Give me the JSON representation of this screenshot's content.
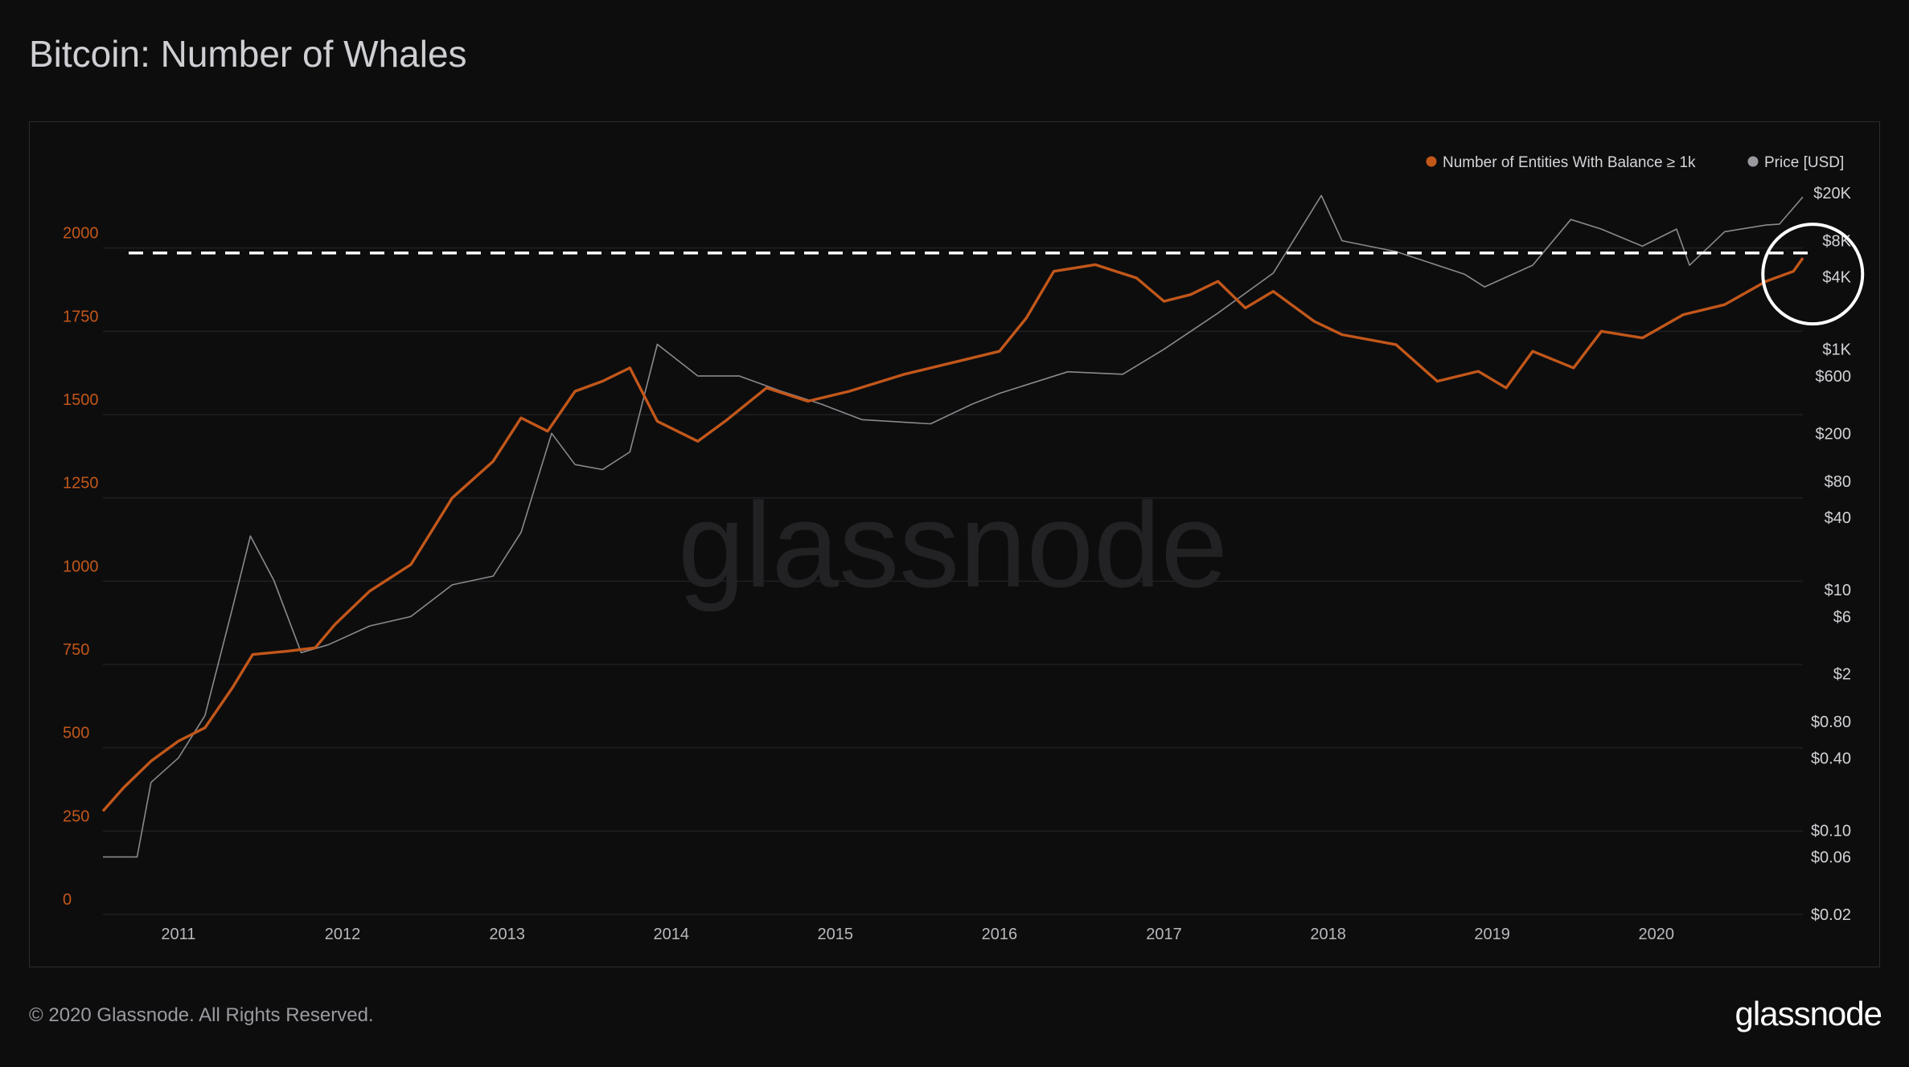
{
  "page": {
    "title": "Bitcoin: Number of Whales",
    "footer_copyright": "© 2020 Glassnode. All Rights Reserved.",
    "footer_logo": "glassnode",
    "watermark": "glassnode"
  },
  "chart_data": {
    "type": "line",
    "title": "Bitcoin: Number of Whales",
    "legend_position": "top-right",
    "grid": true,
    "colors": {
      "whales": "#c2571a",
      "price": "#8a8a8e",
      "background": "#0d0d0e",
      "annotation": "#ffffff"
    },
    "x_ticks": [
      "2011",
      "2012",
      "2013",
      "2014",
      "2015",
      "2016",
      "2017",
      "2018",
      "2019",
      "2020"
    ],
    "x_range": [
      "2010-07-17",
      "2020-11-22"
    ],
    "y_left": {
      "ticks": [
        0,
        250,
        500,
        750,
        1000,
        1250,
        1500,
        1750,
        2000
      ],
      "labels": [
        "0",
        "250",
        "500",
        "750",
        "1000",
        "1250",
        "1500",
        "1750",
        "2000"
      ],
      "range": [
        0,
        2250
      ]
    },
    "y_right": {
      "scale": "log",
      "range": [
        0.02,
        20000
      ],
      "ticks": [
        20000,
        8000,
        4000,
        1000,
        600,
        200,
        80,
        40,
        10,
        6,
        2,
        0.8,
        0.4,
        0.1,
        0.06,
        0.02
      ],
      "labels": [
        "$20K",
        "$8K",
        "$4K",
        "$1K",
        "$600",
        "$200",
        "$80",
        "$40",
        "$10",
        "$6",
        "$2",
        "$0.80",
        "$0.40",
        "$0.10",
        "$0.06",
        "$0.02"
      ]
    },
    "series": [
      {
        "name": "Number of Entities With Balance ≥ 1k",
        "axis": "left",
        "points": [
          [
            "2010-07-17",
            310
          ],
          [
            "2010-09-01",
            380
          ],
          [
            "2010-11-01",
            460
          ],
          [
            "2011-01-01",
            520
          ],
          [
            "2011-03-01",
            560
          ],
          [
            "2011-05-01",
            680
          ],
          [
            "2011-06-15",
            780
          ],
          [
            "2011-09-01",
            790
          ],
          [
            "2011-11-01",
            800
          ],
          [
            "2011-12-15",
            870
          ],
          [
            "2012-03-01",
            970
          ],
          [
            "2012-06-01",
            1050
          ],
          [
            "2012-09-01",
            1250
          ],
          [
            "2012-12-01",
            1360
          ],
          [
            "2013-02-01",
            1490
          ],
          [
            "2013-04-01",
            1450
          ],
          [
            "2013-06-01",
            1570
          ],
          [
            "2013-08-01",
            1600
          ],
          [
            "2013-10-01",
            1640
          ],
          [
            "2013-12-01",
            1480
          ],
          [
            "2014-03-01",
            1420
          ],
          [
            "2014-05-01",
            1480
          ],
          [
            "2014-08-01",
            1580
          ],
          [
            "2014-11-01",
            1540
          ],
          [
            "2015-02-01",
            1570
          ],
          [
            "2015-06-01",
            1620
          ],
          [
            "2015-10-01",
            1660
          ],
          [
            "2016-01-01",
            1690
          ],
          [
            "2016-03-01",
            1790
          ],
          [
            "2016-05-01",
            1930
          ],
          [
            "2016-08-01",
            1950
          ],
          [
            "2016-11-01",
            1910
          ],
          [
            "2017-01-01",
            1840
          ],
          [
            "2017-03-01",
            1860
          ],
          [
            "2017-05-01",
            1900
          ],
          [
            "2017-07-01",
            1820
          ],
          [
            "2017-09-01",
            1870
          ],
          [
            "2017-12-01",
            1780
          ],
          [
            "2018-02-01",
            1740
          ],
          [
            "2018-06-01",
            1710
          ],
          [
            "2018-09-01",
            1600
          ],
          [
            "2018-12-01",
            1630
          ],
          [
            "2019-02-01",
            1580
          ],
          [
            "2019-04-01",
            1690
          ],
          [
            "2019-07-01",
            1640
          ],
          [
            "2019-09-01",
            1750
          ],
          [
            "2019-12-01",
            1730
          ],
          [
            "2020-03-01",
            1800
          ],
          [
            "2020-06-01",
            1830
          ],
          [
            "2020-09-01",
            1900
          ],
          [
            "2020-11-01",
            1930
          ],
          [
            "2020-11-22",
            1970
          ]
        ]
      },
      {
        "name": "Price [USD]",
        "axis": "right",
        "points": [
          [
            "2010-07-17",
            0.06
          ],
          [
            "2010-10-01",
            0.06
          ],
          [
            "2010-11-01",
            0.25
          ],
          [
            "2011-01-01",
            0.4
          ],
          [
            "2011-03-01",
            0.9
          ],
          [
            "2011-05-01",
            7
          ],
          [
            "2011-06-10",
            28
          ],
          [
            "2011-08-01",
            12
          ],
          [
            "2011-10-01",
            3
          ],
          [
            "2011-12-01",
            3.5
          ],
          [
            "2012-03-01",
            5
          ],
          [
            "2012-06-01",
            6
          ],
          [
            "2012-09-01",
            11
          ],
          [
            "2012-12-01",
            13
          ],
          [
            "2013-02-01",
            30
          ],
          [
            "2013-04-10",
            200
          ],
          [
            "2013-06-01",
            110
          ],
          [
            "2013-08-01",
            100
          ],
          [
            "2013-10-01",
            140
          ],
          [
            "2013-12-01",
            1100
          ],
          [
            "2014-03-01",
            600
          ],
          [
            "2014-06-01",
            600
          ],
          [
            "2014-09-01",
            450
          ],
          [
            "2014-12-01",
            350
          ],
          [
            "2015-03-01",
            260
          ],
          [
            "2015-08-01",
            240
          ],
          [
            "2015-11-01",
            350
          ],
          [
            "2016-01-01",
            430
          ],
          [
            "2016-06-01",
            650
          ],
          [
            "2016-10-01",
            620
          ],
          [
            "2017-01-01",
            1000
          ],
          [
            "2017-05-01",
            2000
          ],
          [
            "2017-09-01",
            4300
          ],
          [
            "2017-12-17",
            19000
          ],
          [
            "2018-02-01",
            8000
          ],
          [
            "2018-06-01",
            6500
          ],
          [
            "2018-11-01",
            4200
          ],
          [
            "2018-12-15",
            3300
          ],
          [
            "2019-04-01",
            5000
          ],
          [
            "2019-06-25",
            12000
          ],
          [
            "2019-09-01",
            10000
          ],
          [
            "2019-12-01",
            7200
          ],
          [
            "2020-02-15",
            10000
          ],
          [
            "2020-03-15",
            5000
          ],
          [
            "2020-06-01",
            9500
          ],
          [
            "2020-09-01",
            10800
          ],
          [
            "2020-10-01",
            11000
          ],
          [
            "2020-11-22",
            18500
          ]
        ]
      }
    ],
    "annotations": [
      {
        "type": "dashed-line",
        "axis": "left",
        "y": 1985
      },
      {
        "type": "circle",
        "x": "2020-11-01",
        "y": 1970
      }
    ]
  }
}
